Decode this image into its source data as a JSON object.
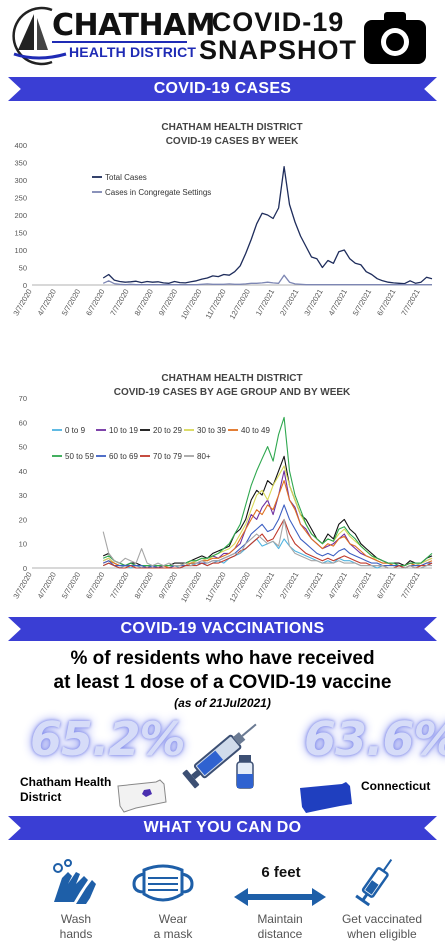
{
  "header": {
    "logo_name": "CHATHAM",
    "logo_subtitle": "HEALTH DISTRICT",
    "title_line1": "COVID-19",
    "title_line2": "SNAPSHOT",
    "camera_icon": "camera-icon"
  },
  "sections": {
    "cases": "COVID-19 CASES",
    "vaccinations": "COVID-19 VACCINATIONS",
    "what_you_can_do": "WHAT YOU CAN DO"
  },
  "chart_data": [
    {
      "type": "line",
      "title": "CHATHAM HEALTH DISTRICT",
      "subtitle": "COVID-19 CASES BY WEEK",
      "ylim": [
        0,
        400
      ],
      "yticks": [
        0,
        50,
        100,
        150,
        200,
        250,
        300,
        350,
        400
      ],
      "xticks": [
        "3/7/2020",
        "4/7/2020",
        "5/7/2020",
        "6/7/2020",
        "7/7/2020",
        "8/7/2020",
        "9/7/2020",
        "10/7/2020",
        "11/7/2020",
        "12/7/2020",
        "1/7/2021",
        "2/7/2021",
        "3/7/2021",
        "4/7/2021",
        "5/7/2021",
        "6/7/2021",
        "7/7/2021"
      ],
      "grid": false,
      "legend": "top-left",
      "series": [
        {
          "name": "Total Cases",
          "color": "#1f2d5c",
          "values": [
            null,
            null,
            null,
            null,
            null,
            null,
            null,
            null,
            null,
            null,
            null,
            null,
            null,
            20,
            30,
            14,
            10,
            8,
            9,
            11,
            7,
            10,
            8,
            9,
            6,
            5,
            10,
            7,
            6,
            9,
            12,
            17,
            20,
            26,
            24,
            30,
            28,
            38,
            55,
            90,
            130,
            175,
            205,
            200,
            190,
            220,
            338,
            230,
            180,
            140,
            110,
            80,
            75,
            50,
            70,
            62,
            95,
            100,
            75,
            62,
            58,
            38,
            30,
            18,
            12,
            8,
            6,
            5,
            4,
            12,
            5,
            8,
            22,
            18
          ]
        },
        {
          "name": "Cases in Congregate Settings",
          "color": "#7d86b3",
          "values": [
            null,
            null,
            null,
            null,
            null,
            null,
            null,
            null,
            null,
            null,
            null,
            null,
            null,
            5,
            12,
            4,
            2,
            1,
            2,
            1,
            1,
            1,
            1,
            1,
            1,
            1,
            1,
            1,
            1,
            1,
            1,
            2,
            3,
            2,
            2,
            2,
            3,
            2,
            2,
            3,
            5,
            5,
            6,
            8,
            6,
            5,
            28,
            8,
            3,
            2,
            1,
            1,
            1,
            1,
            1,
            1,
            1,
            1,
            1,
            1,
            1,
            1,
            1,
            1,
            1,
            1,
            1,
            1,
            1,
            1,
            1,
            1,
            1,
            1
          ]
        }
      ]
    },
    {
      "type": "line",
      "title": "CHATHAM HEALTH DISTRICT",
      "subtitle": "COVID-19 CASES BY AGE GROUP AND BY WEEK",
      "ylim": [
        0,
        70
      ],
      "yticks": [
        0,
        10,
        20,
        30,
        40,
        50,
        60,
        70
      ],
      "xticks": [
        "3/7/2020",
        "4/7/2020",
        "5/7/2020",
        "6/7/2020",
        "7/7/2020",
        "8/7/2020",
        "9/7/2020",
        "10/7/2020",
        "11/7/2020",
        "12/7/2020",
        "1/7/2021",
        "2/7/2021",
        "3/7/2021",
        "4/7/2021",
        "5/7/2021",
        "6/7/2021",
        "7/7/2021"
      ],
      "grid": false,
      "legend": "top-left",
      "series": [
        {
          "name": "0 to 9",
          "color": "#4fb3e0",
          "values": [
            null,
            null,
            null,
            null,
            null,
            null,
            null,
            null,
            null,
            null,
            null,
            null,
            null,
            1,
            2,
            1,
            0,
            1,
            0,
            1,
            0,
            1,
            0,
            1,
            0,
            0,
            1,
            0,
            1,
            2,
            1,
            2,
            1,
            2,
            3,
            2,
            4,
            5,
            6,
            8,
            10,
            12,
            9,
            10,
            11,
            8,
            12,
            9,
            7,
            6,
            5,
            4,
            3,
            2,
            3,
            2,
            4,
            3,
            3,
            2,
            1,
            1,
            1,
            0,
            1,
            0,
            0,
            1,
            0,
            1,
            0,
            0,
            1,
            2
          ]
        },
        {
          "name": "10 to 19",
          "color": "#7030a0",
          "values": [
            null,
            null,
            null,
            null,
            null,
            null,
            null,
            null,
            null,
            null,
            null,
            null,
            null,
            3,
            4,
            2,
            1,
            1,
            2,
            1,
            1,
            1,
            1,
            0,
            1,
            0,
            1,
            1,
            2,
            2,
            3,
            4,
            3,
            5,
            4,
            6,
            6,
            8,
            10,
            16,
            22,
            20,
            25,
            28,
            22,
            30,
            40,
            28,
            25,
            18,
            16,
            12,
            10,
            8,
            9,
            10,
            12,
            14,
            10,
            8,
            6,
            5,
            4,
            3,
            2,
            2,
            1,
            1,
            1,
            2,
            1,
            2,
            3,
            4
          ]
        },
        {
          "name": "20 to 29",
          "color": "#111111",
          "values": [
            null,
            null,
            null,
            null,
            null,
            null,
            null,
            null,
            null,
            null,
            null,
            null,
            null,
            5,
            6,
            3,
            2,
            1,
            2,
            2,
            1,
            1,
            1,
            1,
            1,
            1,
            2,
            2,
            2,
            3,
            4,
            5,
            4,
            6,
            7,
            8,
            9,
            14,
            16,
            20,
            28,
            32,
            30,
            36,
            34,
            40,
            46,
            34,
            28,
            22,
            20,
            16,
            12,
            10,
            14,
            12,
            18,
            20,
            16,
            14,
            10,
            8,
            6,
            4,
            3,
            2,
            2,
            2,
            1,
            3,
            2,
            2,
            4,
            5
          ]
        },
        {
          "name": "30 to 39",
          "color": "#d9d957",
          "values": [
            null,
            null,
            null,
            null,
            null,
            null,
            null,
            null,
            null,
            null,
            null,
            null,
            null,
            3,
            4,
            2,
            1,
            1,
            1,
            1,
            1,
            1,
            1,
            1,
            1,
            1,
            1,
            1,
            2,
            2,
            3,
            4,
            3,
            5,
            6,
            7,
            8,
            10,
            14,
            18,
            24,
            30,
            32,
            28,
            34,
            38,
            42,
            34,
            28,
            22,
            18,
            14,
            12,
            10,
            12,
            11,
            14,
            16,
            13,
            11,
            9,
            7,
            5,
            3,
            2,
            2,
            1,
            1,
            1,
            2,
            1,
            2,
            3,
            4
          ]
        },
        {
          "name": "40 to 49",
          "color": "#e07020",
          "values": [
            null,
            null,
            null,
            null,
            null,
            null,
            null,
            null,
            null,
            null,
            null,
            null,
            null,
            2,
            3,
            2,
            1,
            1,
            1,
            1,
            1,
            1,
            1,
            1,
            1,
            0,
            1,
            1,
            1,
            2,
            2,
            3,
            3,
            4,
            4,
            5,
            6,
            8,
            12,
            16,
            20,
            24,
            22,
            26,
            24,
            30,
            36,
            28,
            24,
            18,
            15,
            12,
            10,
            8,
            10,
            9,
            12,
            13,
            10,
            9,
            7,
            5,
            4,
            3,
            2,
            2,
            1,
            1,
            1,
            2,
            1,
            1,
            2,
            3
          ]
        },
        {
          "name": "50 to 59",
          "color": "#2fa84f",
          "values": [
            null,
            null,
            null,
            null,
            null,
            null,
            null,
            null,
            null,
            null,
            null,
            null,
            null,
            4,
            5,
            3,
            2,
            1,
            2,
            1,
            1,
            1,
            1,
            1,
            1,
            1,
            1,
            1,
            2,
            3,
            3,
            4,
            4,
            5,
            6,
            8,
            10,
            14,
            18,
            26,
            34,
            40,
            45,
            50,
            44,
            55,
            62,
            40,
            30,
            24,
            18,
            14,
            12,
            10,
            12,
            11,
            16,
            17,
            14,
            12,
            9,
            7,
            5,
            4,
            3,
            2,
            2,
            1,
            1,
            2,
            2,
            2,
            4,
            6
          ]
        },
        {
          "name": "60 to 69",
          "color": "#3d5fc2",
          "values": [
            null,
            null,
            null,
            null,
            null,
            null,
            null,
            null,
            null,
            null,
            null,
            null,
            null,
            2,
            3,
            1,
            1,
            1,
            1,
            1,
            1,
            0,
            1,
            0,
            0,
            0,
            1,
            1,
            1,
            1,
            2,
            2,
            2,
            3,
            3,
            4,
            5,
            6,
            8,
            10,
            14,
            16,
            18,
            15,
            16,
            20,
            26,
            20,
            16,
            12,
            10,
            8,
            6,
            5,
            6,
            5,
            7,
            8,
            6,
            5,
            4,
            3,
            2,
            2,
            1,
            1,
            1,
            1,
            0,
            1,
            1,
            1,
            2,
            2
          ]
        },
        {
          "name": "70 to 79",
          "color": "#c0392b",
          "values": [
            null,
            null,
            null,
            null,
            null,
            null,
            null,
            null,
            null,
            null,
            null,
            null,
            null,
            1,
            2,
            1,
            0,
            0,
            1,
            0,
            0,
            0,
            0,
            0,
            0,
            0,
            0,
            0,
            1,
            1,
            1,
            2,
            1,
            2,
            2,
            3,
            4,
            5,
            7,
            8,
            10,
            12,
            14,
            11,
            12,
            16,
            20,
            14,
            10,
            8,
            6,
            5,
            4,
            3,
            4,
            3,
            4,
            5,
            4,
            3,
            2,
            2,
            1,
            1,
            1,
            0,
            0,
            1,
            0,
            1,
            0,
            1,
            1,
            2
          ]
        },
        {
          "name": "80+",
          "color": "#a6a6a6",
          "values": [
            null,
            null,
            null,
            null,
            null,
            null,
            null,
            null,
            null,
            null,
            null,
            null,
            null,
            15,
            6,
            3,
            2,
            4,
            3,
            2,
            8,
            2,
            1,
            2,
            1,
            2,
            1,
            1,
            2,
            1,
            2,
            3,
            2,
            3,
            3,
            4,
            5,
            6,
            6,
            10,
            12,
            14,
            12,
            10,
            11,
            9,
            20,
            9,
            6,
            5,
            4,
            3,
            3,
            2,
            2,
            2,
            3,
            2,
            2,
            2,
            1,
            1,
            1,
            1,
            1,
            0,
            0,
            0,
            0,
            1,
            0,
            0,
            1,
            1
          ]
        }
      ]
    }
  ],
  "vaccination": {
    "heading_line1": "% of residents who have received",
    "heading_line2": "at least 1 dose of a COVID-19 vaccine",
    "as_of": "(as of 21Jul2021)",
    "chd_pct": "65.2%",
    "ct_pct": "63.6%",
    "chd_label_line1": "Chatham Health",
    "chd_label_line2": "District",
    "ct_label": "Connecticut"
  },
  "actions": [
    {
      "icon": "hand-washing-icon",
      "line1": "Wash",
      "line2": "hands"
    },
    {
      "icon": "mask-icon",
      "line1": "Wear",
      "line2": "a mask"
    },
    {
      "icon": "distance-arrow-icon",
      "line1": "Maintain",
      "line2": "distance",
      "badge": "6 feet"
    },
    {
      "icon": "syringe-icon",
      "line1": "Get vaccinated",
      "line2": "when eligible"
    }
  ],
  "colors": {
    "banner": "#3a3ed4",
    "navy": "#1f2d5c",
    "icon_blue": "#1e5fa8"
  }
}
